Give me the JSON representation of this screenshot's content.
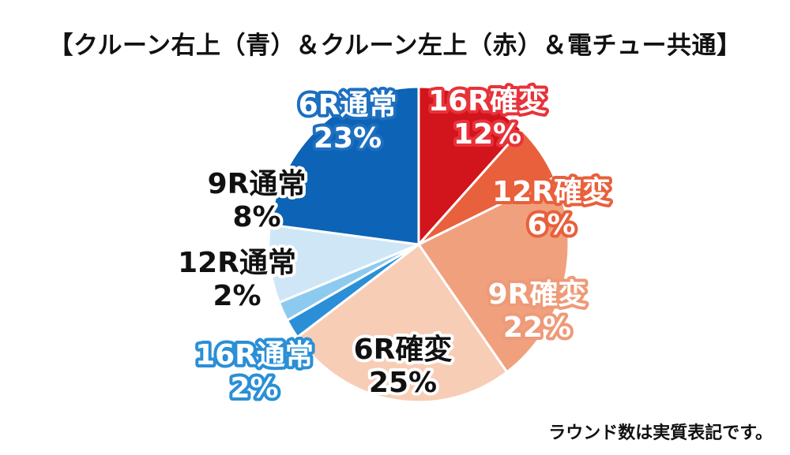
{
  "title": "【クルーン右上（青）＆クルーン左上（赤）＆電チュー共通】",
  "footnote": "ラウンド数は実質表記です。",
  "chart_data": {
    "type": "pie",
    "title": "【クルーン右上（青）＆クルーン左上（赤）＆電チュー共通】",
    "slices": [
      {
        "label": "16R確変",
        "value": 12,
        "value_label": "12%",
        "color": "#d2141c",
        "text_color": "#ffffff",
        "outline_color": "#e8323a"
      },
      {
        "label": "12R確変",
        "value": 6,
        "value_label": "6%",
        "color": "#e8603c",
        "text_color": "#ffffff",
        "outline_color": "#e8603c"
      },
      {
        "label": "9R確変",
        "value": 22,
        "value_label": "22%",
        "color": "#f1a07d",
        "text_color": "#ffffff",
        "outline_color": "#ee9a78"
      },
      {
        "label": "6R確変",
        "value": 25,
        "value_label": "25%",
        "color": "#f8cdb6",
        "text_color": "#111111",
        "outline_color": "#f8cdb6"
      },
      {
        "label": "16R通常",
        "value": 2,
        "value_label": "2%",
        "color": "#2a8fd6",
        "text_color": "#ffffff",
        "outline_color": "#2a8fd6"
      },
      {
        "label": "12R通常",
        "value": 2,
        "value_label": "2%",
        "color": "#8dcaf0",
        "text_color": "#111111",
        "outline_color": "#9fd3f3"
      },
      {
        "label": "9R通常",
        "value": 8,
        "value_label": "8%",
        "color": "#cfe6f7",
        "text_color": "#111111",
        "outline_color": "#b8def5"
      },
      {
        "label": "6R通常",
        "value": 23,
        "value_label": "23%",
        "color": "#0d63b5",
        "text_color": "#ffffff",
        "outline_color": "#1d6fc0"
      }
    ]
  }
}
